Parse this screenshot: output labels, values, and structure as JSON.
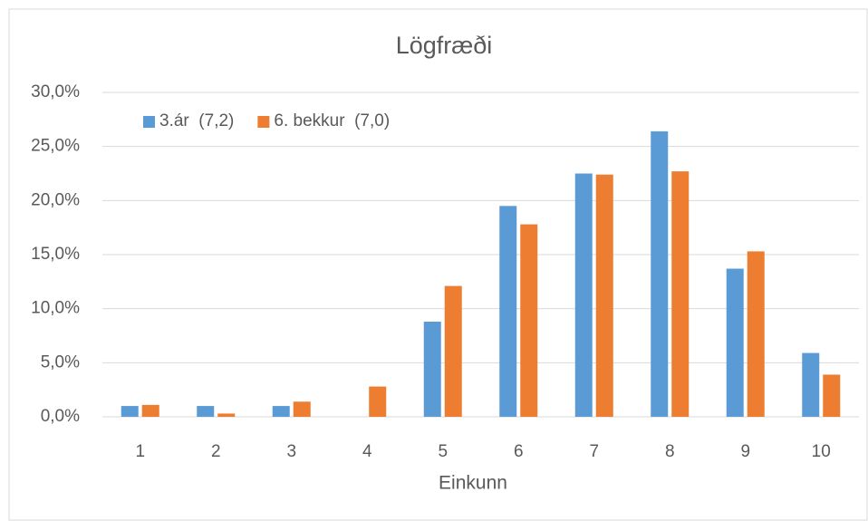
{
  "chart_data": {
    "type": "bar",
    "title": "Lögfræði",
    "x_label": "Einkunn",
    "categories": [
      "1",
      "2",
      "3",
      "4",
      "5",
      "6",
      "7",
      "8",
      "9",
      "10"
    ],
    "series": [
      {
        "name": "3.ár  (7,2)",
        "color": "#5b9bd5",
        "values": [
          1.0,
          1.0,
          1.0,
          0,
          8.8,
          19.5,
          22.5,
          26.4,
          13.7,
          5.9
        ]
      },
      {
        "name": "6. bekkur  (7,0)",
        "color": "#ed7d31",
        "values": [
          1.1,
          0.3,
          1.4,
          2.8,
          12.1,
          17.8,
          22.4,
          22.7,
          15.3,
          3.9
        ]
      }
    ],
    "ylim": [
      0,
      30
    ],
    "yticks": [
      {
        "value": 0,
        "label": "0,0%"
      },
      {
        "value": 5,
        "label": "5,0%"
      },
      {
        "value": 10,
        "label": "10,0%"
      },
      {
        "value": 15,
        "label": "15,0%"
      },
      {
        "value": 20,
        "label": "20,0%"
      },
      {
        "value": 25,
        "label": "25,0%"
      },
      {
        "value": 30,
        "label": "30,0%"
      }
    ],
    "grid": true,
    "legend": "top-left"
  }
}
